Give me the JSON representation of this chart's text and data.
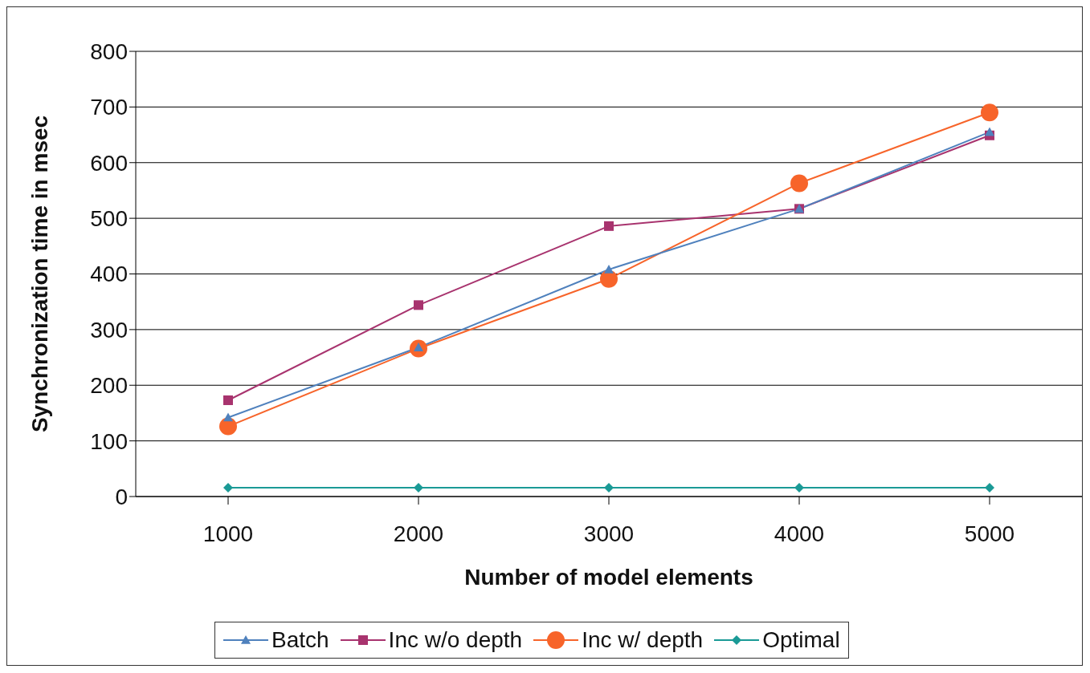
{
  "chart_data": {
    "type": "line",
    "xlabel": "Number of model elements",
    "ylabel": "Synchronization time in msec",
    "categories": [
      "1000",
      "2000",
      "3000",
      "4000",
      "5000"
    ],
    "series": [
      {
        "name": "Batch",
        "color": "#4f81bd",
        "marker": "triangle",
        "values": [
          142,
          268,
          408,
          517,
          655
        ]
      },
      {
        "name": "Inc w/o depth",
        "color": "#a8336e",
        "marker": "square",
        "values": [
          173,
          344,
          486,
          517,
          649
        ]
      },
      {
        "name": "Inc w/ depth",
        "color": "#f7642a",
        "marker": "circle",
        "values": [
          126,
          266,
          391,
          563,
          690
        ]
      },
      {
        "name": "Optimal",
        "color": "#1a9a96",
        "marker": "diamond",
        "values": [
          16,
          16,
          16,
          16,
          16
        ]
      }
    ],
    "ylim": [
      0,
      800
    ],
    "yticks": [
      0,
      100,
      200,
      300,
      400,
      500,
      600,
      700,
      800
    ],
    "grid": "y",
    "legend": "bottom"
  }
}
